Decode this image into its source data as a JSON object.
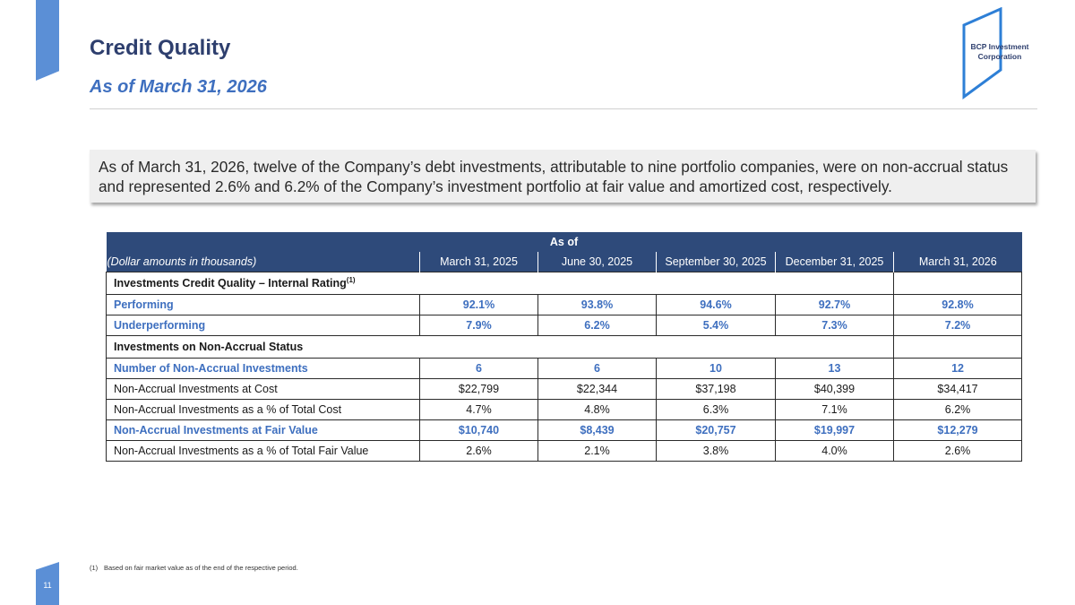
{
  "header": {
    "title": "Credit Quality",
    "subtitle": "As of March 31, 2026"
  },
  "logo": {
    "line1": "BCP Investment",
    "line2": "Corporation",
    "color": "#2e7fd6"
  },
  "callout": {
    "text": "As of March 31, 2026, twelve of the Company’s debt investments, attributable to nine portfolio companies, were on non-accrual status and represented 2.6% and 6.2% of the Company’s investment portfolio at fair value and amortized cost, respectively."
  },
  "table": {
    "as_of_label": "As of",
    "units_label": "(Dollar amounts in thousands)",
    "columns": [
      "March 31, 2025",
      "June 30, 2025",
      "September 30, 2025",
      "December 31, 2025",
      "March 31, 2026"
    ],
    "section1": {
      "label": "Investments Credit Quality – Internal Rating",
      "footnote_mark": "(1)"
    },
    "performing": {
      "label": "Performing",
      "values": [
        "92.1%",
        "93.8%",
        "94.6%",
        "92.7%",
        "92.8%"
      ]
    },
    "underperforming": {
      "label": "Underperforming",
      "values": [
        "7.9%",
        "6.2%",
        "5.4%",
        "7.3%",
        "7.2%"
      ]
    },
    "section2": {
      "label": "Investments on Non-Accrual Status"
    },
    "num_nonaccrual": {
      "label": "Number of Non-Accrual Investments",
      "values": [
        "6",
        "6",
        "10",
        "13",
        "12"
      ]
    },
    "at_cost": {
      "label": "Non-Accrual Investments at Cost",
      "values": [
        "$22,799",
        "$22,344",
        "$37,198",
        "$40,399",
        "$34,417"
      ]
    },
    "pct_cost": {
      "label": "Non-Accrual Investments as a % of Total Cost",
      "values": [
        "4.7%",
        "4.8%",
        "6.3%",
        "7.1%",
        "6.2%"
      ]
    },
    "at_fair": {
      "label": "Non-Accrual Investments at Fair Value",
      "values": [
        "$10,740",
        "$8,439",
        "$20,757",
        "$19,997",
        "$12,279"
      ]
    },
    "pct_fair": {
      "label": "Non-Accrual Investments as a % of Total Fair Value",
      "values": [
        "2.6%",
        "2.1%",
        "3.8%",
        "4.0%",
        "2.6%"
      ]
    }
  },
  "footnote": {
    "number": "(1)",
    "text": "Based on fair market value as of the end of the respective period."
  },
  "page_number": "11",
  "colors": {
    "accent": "#5b8fd6",
    "header_fill": "#2e4a7a",
    "highlight_text": "#3e6fbf",
    "title": "#2e3f6e"
  }
}
